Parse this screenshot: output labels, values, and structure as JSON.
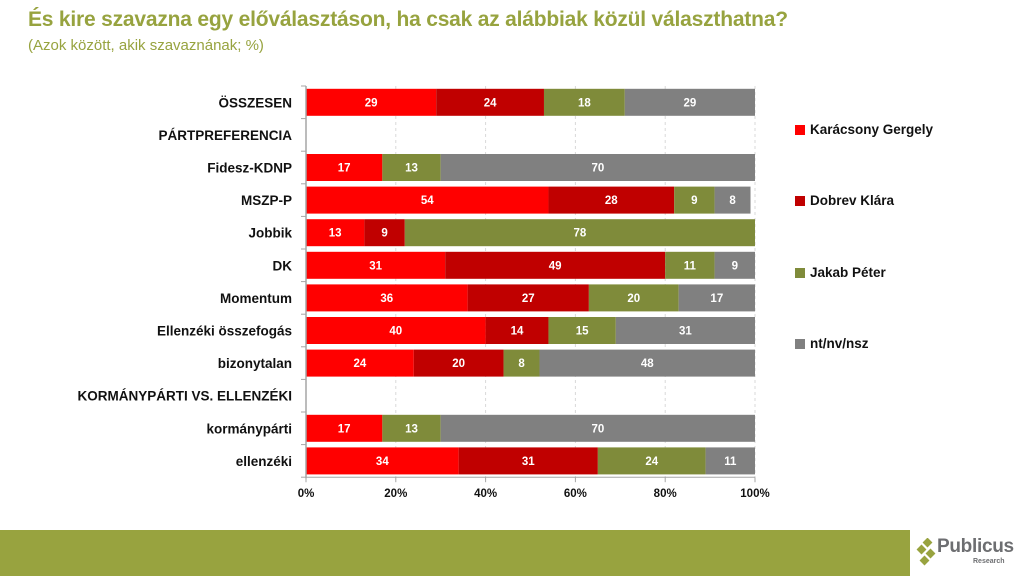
{
  "header": {
    "title": "És kire szavazna egy előválasztáson, ha csak az alábbiak közül választhatna?",
    "subtitle": "(Azok között, akik szavaznának; %)"
  },
  "colors": {
    "title": "#97a33f",
    "footer_bar": "#98a33f",
    "series": [
      "#ff0000",
      "#c00000",
      "#7f8b3a",
      "#808080"
    ]
  },
  "chart_data": {
    "type": "bar",
    "orientation": "horizontal",
    "stacked": "percent",
    "title": "És kire szavazna egy előválasztáson, ha csak az alábbiak közül választhatna?",
    "subtitle": "(Azok között, akik szavaznának; %)",
    "categories": [
      "ÖSSZESEN",
      "PÁRTPREFERENCIA",
      "Fidesz-KDNP",
      "MSZP-P",
      "Jobbik",
      "DK",
      "Momentum",
      "Ellenzéki összefogás",
      "bizonytalan",
      "KORMÁNYPÁRTI VS. ELLENZÉKI",
      "kormánypárti",
      "ellenzéki"
    ],
    "series": [
      {
        "name": "Karácsony Gergely",
        "color": "#ff0000",
        "values": [
          29,
          null,
          17,
          54,
          13,
          31,
          36,
          40,
          24,
          null,
          17,
          34
        ]
      },
      {
        "name": "Dobrev Klára",
        "color": "#c00000",
        "values": [
          24,
          null,
          0,
          28,
          9,
          49,
          27,
          14,
          20,
          null,
          0,
          31
        ]
      },
      {
        "name": "Jakab Péter",
        "color": "#7f8b3a",
        "values": [
          18,
          null,
          13,
          9,
          78,
          11,
          20,
          15,
          8,
          null,
          13,
          24
        ]
      },
      {
        "name": "nt/nv/nsz",
        "color": "#808080",
        "values": [
          29,
          null,
          70,
          8,
          0,
          9,
          17,
          31,
          48,
          null,
          70,
          11
        ]
      }
    ],
    "xlim": [
      0,
      100
    ],
    "xticks": [
      "0%",
      "20%",
      "40%",
      "60%",
      "80%",
      "100%"
    ],
    "xlabel": "",
    "ylabel": "",
    "grid": "vertical dashed",
    "legend": "right"
  },
  "logo": {
    "name": "Publicus",
    "sub": "Research"
  }
}
